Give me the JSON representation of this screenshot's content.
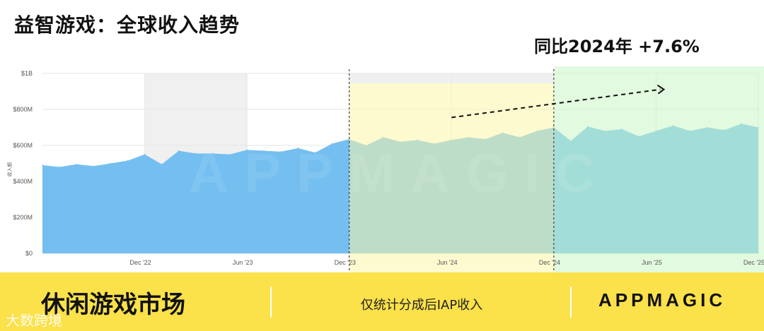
{
  "header": {
    "title": "益智游戏：全球收入趋势",
    "yoy_label": "同比2024年 +7.6%"
  },
  "footer": {
    "left_label": "休闲游戏市场",
    "middle_label": "仅统计分成后IAP收入",
    "brand": "APPMAGIC",
    "bg_color": "#fbe14a"
  },
  "watermark": "APPMAGIC",
  "corner_mark": "大数跨境",
  "chart_data": {
    "type": "area",
    "title": "益智游戏：全球收入趋势",
    "ylabel": "收入额",
    "xlabel": "",
    "ylim": [
      0,
      1000
    ],
    "yticks": [
      0,
      200,
      400,
      600,
      800,
      1000
    ],
    "ytick_labels": [
      "$0",
      "$200M",
      "$400M",
      "$600M",
      "$800M",
      "$1B"
    ],
    "x_range": [
      "2022-06",
      "2025-12"
    ],
    "xtick_labels": [
      {
        "month": "2022-12",
        "label": "Dec '22"
      },
      {
        "month": "2023-06",
        "label": "Jun '23"
      },
      {
        "month": "2023-12",
        "label": "Dec '23"
      },
      {
        "month": "2024-06",
        "label": "Jun '24"
      },
      {
        "month": "2024-12",
        "label": "Dec '24"
      },
      {
        "month": "2025-06",
        "label": "Jun '25"
      },
      {
        "month": "2025-12",
        "label": "Dec '25"
      }
    ],
    "series": [
      {
        "color": "#74bff0",
        "x": [
          "2022-06",
          "2022-07",
          "2022-08",
          "2022-09",
          "2022-10",
          "2022-11",
          "2022-12",
          "2023-01",
          "2023-02",
          "2023-03",
          "2023-04",
          "2023-05",
          "2023-06",
          "2023-07",
          "2023-08",
          "2023-09",
          "2023-10",
          "2023-11",
          "2023-12",
          "2024-01",
          "2024-02",
          "2024-03",
          "2024-04",
          "2024-05",
          "2024-06",
          "2024-07",
          "2024-08",
          "2024-09",
          "2024-10",
          "2024-11",
          "2024-12",
          "2025-01",
          "2025-02",
          "2025-03",
          "2025-04",
          "2025-05",
          "2025-06",
          "2025-07",
          "2025-08",
          "2025-09",
          "2025-10",
          "2025-11",
          "2025-12"
        ],
        "values": [
          490,
          480,
          495,
          485,
          500,
          515,
          550,
          495,
          570,
          555,
          555,
          550,
          575,
          570,
          565,
          585,
          560,
          610,
          635,
          600,
          645,
          620,
          630,
          610,
          630,
          645,
          635,
          670,
          645,
          680,
          700,
          625,
          705,
          680,
          690,
          650,
          680,
          710,
          680,
          700,
          685,
          720,
          700
        ]
      }
    ],
    "highlight_bands": [
      {
        "from": "2022-12",
        "to": "2023-06",
        "color": "#f0f0f0",
        "label": ""
      },
      {
        "from": "2023-12",
        "to": "2024-12",
        "color": "#fbf6a8",
        "label": ""
      },
      {
        "from": "2024-12",
        "to": "2025-12",
        "color": "#cbf5c4",
        "label": ""
      }
    ],
    "dashed_dividers": [
      "2023-12",
      "2024-12"
    ],
    "trend_arrow": {
      "from": {
        "x": "2024-06",
        "y": 755
      },
      "to": {
        "x": "2025-06",
        "y": 915
      }
    },
    "colors": {
      "area": "#74bff0",
      "grid": "#e6e6e6",
      "divider": "#222222"
    }
  }
}
